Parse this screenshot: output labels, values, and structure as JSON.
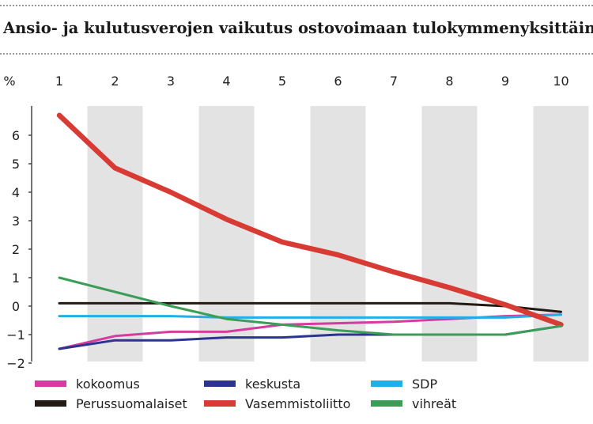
{
  "title": "Ansio- ja kulutusverojen vaikutus ostovoimaan tulokymmenyksittäin",
  "chart_data": {
    "type": "line",
    "title": "Ansio- ja kulutusverojen vaikutus ostovoimaan tulokymmenyksittäin",
    "ylabel": "%",
    "xlabel": "",
    "x": [
      1,
      2,
      3,
      4,
      5,
      6,
      7,
      8,
      9,
      10
    ],
    "ylim": [
      -2,
      7
    ],
    "yticks": [
      -2,
      -1,
      0,
      1,
      2,
      3,
      4,
      5,
      6
    ],
    "ytick_labels": [
      "−2",
      "−1",
      "0",
      "1",
      "2",
      "3",
      "4",
      "5",
      "6"
    ],
    "grid": "alternating vertical bands",
    "legend_position": "bottom",
    "series": [
      {
        "name": "kokoomus",
        "color": "#d63ca0",
        "values": [
          -1.5,
          -1.05,
          -0.9,
          -0.9,
          -0.65,
          -0.6,
          -0.55,
          -0.45,
          -0.35,
          -0.3
        ]
      },
      {
        "name": "keskusta",
        "color": "#2b3590",
        "values": [
          -1.5,
          -1.2,
          -1.2,
          -1.1,
          -1.1,
          -1.0,
          -1.0,
          -1.0,
          -1.0,
          -0.7
        ]
      },
      {
        "name": "SDP",
        "color": "#22aee6",
        "values": [
          -0.35,
          -0.35,
          -0.35,
          -0.4,
          -0.4,
          -0.4,
          -0.4,
          -0.4,
          -0.4,
          -0.3
        ]
      },
      {
        "name": "Perussuomalaiset",
        "color": "#231a14",
        "values": [
          0.1,
          0.1,
          0.1,
          0.1,
          0.1,
          0.1,
          0.1,
          0.1,
          0.0,
          -0.2
        ]
      },
      {
        "name": "Vasemmistoliitto",
        "color": "#d83a34",
        "values": [
          6.7,
          4.85,
          4.0,
          3.05,
          2.25,
          1.8,
          1.2,
          0.65,
          0.05,
          -0.65
        ]
      },
      {
        "name": "vihreät",
        "color": "#3a9e56",
        "values": [
          1.0,
          0.5,
          0.0,
          -0.45,
          -0.65,
          -0.85,
          -1.0,
          -1.0,
          -1.0,
          -0.7
        ]
      }
    ]
  }
}
